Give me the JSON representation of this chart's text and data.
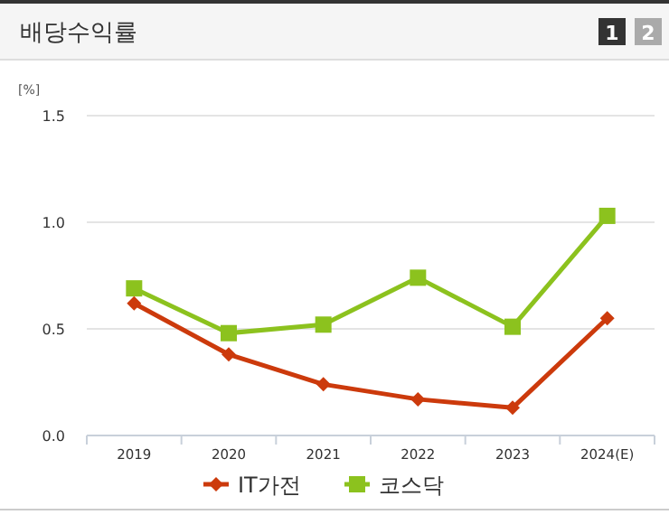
{
  "chart_data": {
    "type": "line",
    "title": "배당수익률",
    "ylabel": "[%]",
    "annotations": [
      "1",
      "2"
    ],
    "categories": [
      "2019",
      "2020",
      "2021",
      "2022",
      "2023",
      "2024(E)"
    ],
    "series": [
      {
        "name": "IT가전",
        "color": "#cc3a0c",
        "marker": "diamond",
        "values": [
          0.62,
          0.38,
          0.24,
          0.17,
          0.13,
          0.55
        ]
      },
      {
        "name": "코스닥",
        "color": "#8cc21e",
        "marker": "square",
        "values": [
          0.69,
          0.48,
          0.52,
          0.74,
          0.51,
          1.03
        ]
      }
    ],
    "ylim": [
      0,
      1.5
    ],
    "yticks": [
      {
        "value": 0,
        "label": "0.0"
      },
      {
        "value": 0.5,
        "label": "0.5"
      },
      {
        "value": 1,
        "label": "1.0"
      },
      {
        "value": 1.5,
        "label": "1.5"
      }
    ],
    "grid": "y",
    "legend": "bottom",
    "line_style": "solid"
  }
}
